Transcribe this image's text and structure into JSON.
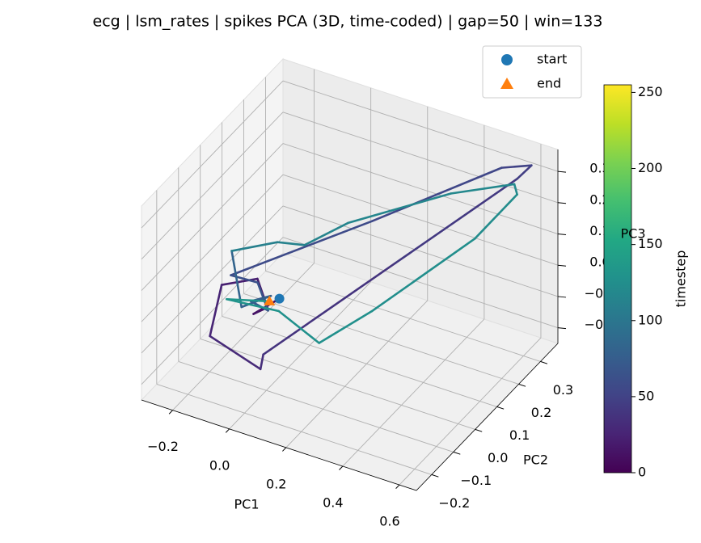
{
  "chart_data": {
    "type": "line3d",
    "title": "ecg | lsm_rates | spikes PCA (3D, time-coded) | gap=50 | win=133",
    "xlabel": "PC1",
    "ylabel": "PC2",
    "zlabel": "PC3",
    "x": [
      0.0,
      -0.03,
      -0.05,
      -0.07,
      -0.15,
      -0.13,
      0.01,
      0.02,
      0.34,
      0.57,
      0.59,
      0.5,
      0.25,
      -0.11,
      -0.1,
      -0.04,
      -0.07,
      -0.03,
      -0.08,
      -0.13,
      -0.03,
      0.05,
      0.15,
      0.39,
      0.56,
      0.57,
      0.49,
      0.28,
      0.14,
      -0.01,
      -0.14,
      -0.02
    ],
    "y": [
      -0.04,
      -0.12,
      -0.03,
      -0.05,
      -0.11,
      -0.19,
      -0.14,
      -0.14,
      0.05,
      0.31,
      0.35,
      0.33,
      0.06,
      -0.12,
      -0.01,
      -0.04,
      -0.08,
      -0.04,
      -0.11,
      -0.09,
      -0.01,
      0.01,
      0.08,
      0.24,
      0.31,
      0.31,
      0.22,
      0.02,
      -0.04,
      -0.03,
      -0.1,
      -0.06
    ],
    "z": [
      0.0,
      0.0,
      -0.05,
      0.05,
      0.05,
      -0.05,
      -0.15,
      -0.1,
      0.15,
      0.3,
      0.32,
      0.3,
      0.25,
      0.1,
      0.0,
      -0.05,
      0.0,
      0.0,
      0.0,
      0.15,
      0.15,
      0.15,
      0.2,
      0.25,
      0.28,
      0.25,
      0.15,
      0.0,
      -0.1,
      -0.05,
      0.0,
      0.0
    ],
    "t": [
      10,
      14,
      18,
      22,
      26,
      30,
      34,
      38,
      42,
      46,
      50,
      54,
      58,
      62,
      66,
      70,
      74,
      78,
      82,
      110,
      112,
      114,
      116,
      118,
      120,
      122,
      124,
      126,
      128,
      130,
      132,
      134
    ],
    "xlim": [
      -0.31,
      0.66
    ],
    "ylim": [
      -0.27,
      0.38
    ],
    "zlim": [
      -0.25,
      0.37
    ],
    "xticks": [
      {
        "value": -0.2,
        "label": "−0.2"
      },
      {
        "value": 0,
        "label": "0.0"
      },
      0.2,
      0.4,
      0.6
    ],
    "yticks": [
      {
        "value": -0.2,
        "label": "−0.2"
      },
      {
        "value": -0.1,
        "label": "−0.1"
      },
      {
        "value": 0,
        "label": "0.0"
      },
      0.1,
      0.2,
      0.3
    ],
    "zticks": [
      {
        "value": -0.2,
        "label": "−0.2"
      },
      {
        "value": -0.1,
        "label": "−0.1"
      },
      {
        "value": 0,
        "label": "0.0"
      },
      0.1,
      0.2,
      0.3
    ],
    "grid": true,
    "legend_loc": "upper right",
    "legend": [
      {
        "name": "start",
        "color": "#1f77b4",
        "marker": "circle"
      },
      {
        "name": "end",
        "color": "#ff7f0e",
        "marker": "triangle"
      }
    ],
    "colorbar": {
      "label": "timestep",
      "cmap": "viridis",
      "lim": [
        0,
        255
      ],
      "ticks": [
        0,
        50,
        100,
        150,
        200,
        250
      ]
    }
  }
}
